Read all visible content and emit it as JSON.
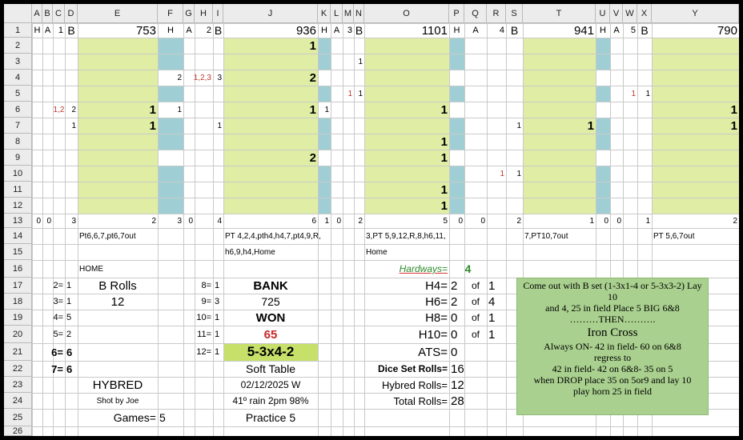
{
  "columns": [
    "A",
    "B",
    "C",
    "D",
    "E",
    "F",
    "G",
    "H",
    "I",
    "J",
    "K",
    "L",
    "M",
    "N",
    "O",
    "P",
    "Q",
    "R",
    "S",
    "T",
    "U",
    "V",
    "W",
    "X",
    "Y"
  ],
  "rows": [
    "1",
    "2",
    "3",
    "4",
    "5",
    "6",
    "7",
    "8",
    "9",
    "10",
    "11",
    "12",
    "13",
    "14",
    "15",
    "16",
    "17",
    "18",
    "19",
    "20",
    "21",
    "22",
    "23",
    "24",
    "25",
    "26"
  ],
  "colors": {
    "yellow": "#e0eda5",
    "teal": "#9fcfd4",
    "note_bg": "#a9d08e",
    "header_bg": "#ececec"
  },
  "header_row": {
    "A1": "H",
    "B1": "A",
    "C1": "1",
    "D1": "B",
    "E1": "753",
    "F1": "H",
    "G1": "A",
    "H1": "2",
    "I1": "B",
    "J1": "936",
    "K1": "H",
    "L1": "A",
    "M1": "3",
    "N1": "B",
    "O1": "1101",
    "P1": "H",
    "Q1": "A",
    "R1": "4",
    "S1": "B",
    "T1": "941",
    "U1": "H",
    "V1": "A",
    "W1": "5",
    "X1": "B",
    "Y1": "790"
  },
  "roll_values": {
    "J2": "1",
    "N3": "1",
    "F4": "2",
    "H4": "1,2,3",
    "I4": "3",
    "J4": "2",
    "M5": "1",
    "N5": "1",
    "W5": "1",
    "X5": "1",
    "C6": "1,2",
    "D6": "2",
    "E6": "1",
    "F6": "1",
    "J6": "1",
    "K6": "1",
    "O6": "1",
    "Y6": "1",
    "D7": "1",
    "E7": "1",
    "I7": "1",
    "S7": "1",
    "T7": "1",
    "Y7": "1",
    "O8": "1",
    "J9": "2",
    "O9": "1",
    "R10": "1",
    "S10": "1",
    "O11": "1",
    "O12": "1"
  },
  "totals_row": {
    "A13": "0",
    "B13": "0",
    "D13": "3",
    "E13": "2",
    "F13": "3",
    "G13": "0",
    "I13": "4",
    "J13": "6",
    "K13": "1",
    "L13": "0",
    "N13": "2",
    "O13": "5",
    "P13": "0",
    "Q13": "0",
    "S13": "2",
    "T13": "1",
    "U13": "0",
    "V13": "0",
    "X13": "1",
    "Y13": "2"
  },
  "roll_notes": {
    "shooter1": "Pt6,6,7,pt6,7out",
    "shooter2_a": "PT 4,2,4,pth4,h4,7,pt4,9,R,",
    "shooter2_b": "h6,9,h4,Home",
    "shooter3_a": "3,PT 5,9,12,R,8,h6,11,",
    "shooter3_b": "Home",
    "shooter4": "7,PT10,7out",
    "shooter5": "PT 5,6,7out",
    "home1": "HOME"
  },
  "rolls_count": {
    "2": "2=",
    "2v": "1",
    "3": "3=",
    "3v": "1",
    "4": "4=",
    "4v": "5",
    "5": "5=",
    "5v": "2",
    "6": "6=",
    "6v": "6",
    "7": "7=",
    "7v": "6",
    "8": "8=",
    "8v": "1",
    "9": "9=",
    "9v": "3",
    "10": "10=",
    "10v": "1",
    "11": "11=",
    "11v": "1",
    "12": "12=",
    "12v": "1"
  },
  "stats": {
    "b_rolls_label": "B Rolls",
    "b_rolls_value": "12",
    "bank_label": "BANK",
    "bank_value": "725",
    "won_label": "WON",
    "won_value": "65",
    "set_label": "5-3x4-2",
    "table_label": "Soft Table",
    "date": "02/12/2025 W",
    "weather": "41º rain 2pm 98%",
    "practice": "Practice 5",
    "hybred": "HYBRED",
    "shot_by": "Shot by Joe",
    "games_label": "Games=",
    "games_value": "5"
  },
  "hardways": {
    "label": "Hardways=",
    "value": "4",
    "h4_label": "H4=",
    "h4_value": "2",
    "h4_of": "of",
    "h4_total": "1",
    "h6_label": "H6=",
    "h6_value": "2",
    "h6_of": "of",
    "h6_total": "4",
    "h8_label": "H8=",
    "h8_value": "0",
    "h8_of": "of",
    "h8_total": "1",
    "h10_label": "H10=",
    "h10_value": "0",
    "h10_of": "of",
    "h10_total": "1",
    "ats_label": "ATS=",
    "ats_value": "0",
    "dice_set_label": "Dice Set Rolls=",
    "dice_set_value": "16",
    "hybred_rolls_label": "Hybred Rolls=",
    "hybred_rolls_value": "12",
    "total_rolls_label": "Total Rolls=",
    "total_rolls_value": "28"
  },
  "note": {
    "line1": "Come out with B set (1-3x1-4 or 5-3x3-2) Lay 10",
    "line2": "and 4, 25 in field Place 5 BIG 6&8",
    "line3": "………THEN……….",
    "line4": "Iron Cross",
    "line5": "Always ON- 42 in field- 60 on 6&8",
    "line6": "regress to",
    "line7": "42 in field- 42 on 6&8- 35 on 5",
    "line8": "when DROP place 35 on 5or9  and lay 10",
    "line9": "play horn 25 in field"
  }
}
